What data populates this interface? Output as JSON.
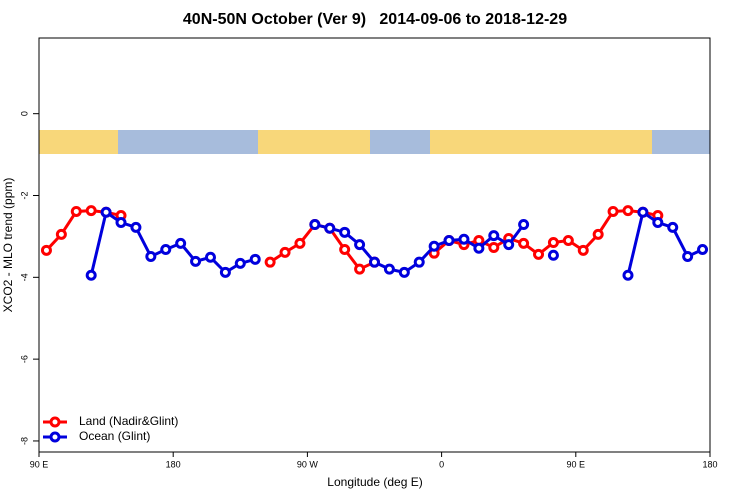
{
  "chart_data": {
    "type": "line",
    "title": "40N-50N October (Ver 9)   2014-09-06 to 2018-12-29",
    "x_label": "Longitude (deg E)",
    "y_label": "XCO2 - MLO trend (ppm)",
    "x": [
      95,
      105,
      115,
      125,
      135,
      145,
      155,
      165,
      175,
      185,
      195,
      205,
      215,
      225,
      235,
      245,
      255,
      265,
      275,
      285,
      295,
      305,
      315,
      325,
      335,
      345,
      355,
      365,
      375,
      385,
      395,
      405,
      415,
      425,
      435,
      445,
      455,
      465,
      475,
      485,
      495,
      505,
      515,
      525,
      535
    ],
    "xlim": [
      90,
      540
    ],
    "xticks": [
      {
        "value": 90,
        "label": "90 E"
      },
      {
        "value": 180,
        "label": "180"
      },
      {
        "value": 270,
        "label": "90 W"
      },
      {
        "value": 360,
        "label": "0"
      },
      {
        "value": 450,
        "label": "90 E"
      },
      {
        "value": 540,
        "label": "180"
      }
    ],
    "ylim": [
      -8.27,
      1.85
    ],
    "yticks": [
      0,
      -2,
      -4,
      -6,
      -8
    ],
    "legend": "bottomleft",
    "series": [
      {
        "name": "Land (Nadir&Glint)",
        "color": "#ff0000",
        "values": [
          -3.34,
          -2.95,
          -2.39,
          -2.37,
          -2.41,
          -2.49,
          null,
          null,
          null,
          null,
          null,
          null,
          null,
          null,
          null,
          -3.63,
          -3.39,
          -3.17,
          -2.71,
          -2.8,
          -3.32,
          -3.8,
          -3.63,
          null,
          null,
          null,
          -3.41,
          -3.1,
          -3.2,
          -3.1,
          -3.27,
          -3.05,
          -3.17,
          -3.44,
          -3.15,
          -3.1,
          -3.34,
          -2.95,
          -2.39,
          -2.37,
          -2.41,
          -2.49,
          null,
          null,
          null
        ]
      },
      {
        "name": "Ocean (Glint)",
        "color": "#0000dd",
        "values": [
          null,
          null,
          null,
          -3.95,
          -2.41,
          -2.66,
          -2.78,
          -3.49,
          -3.32,
          -3.17,
          -3.61,
          -3.51,
          -3.88,
          -3.66,
          -3.56,
          null,
          null,
          null,
          -2.71,
          -2.8,
          -2.9,
          -3.2,
          -3.63,
          -3.8,
          -3.88,
          -3.63,
          -3.24,
          -3.1,
          -3.07,
          -3.29,
          -2.98,
          -3.2,
          -2.71,
          null,
          -3.46,
          null,
          null,
          null,
          null,
          -3.95,
          -2.41,
          -2.66,
          -2.78,
          -3.49,
          -3.32
        ]
      }
    ]
  }
}
